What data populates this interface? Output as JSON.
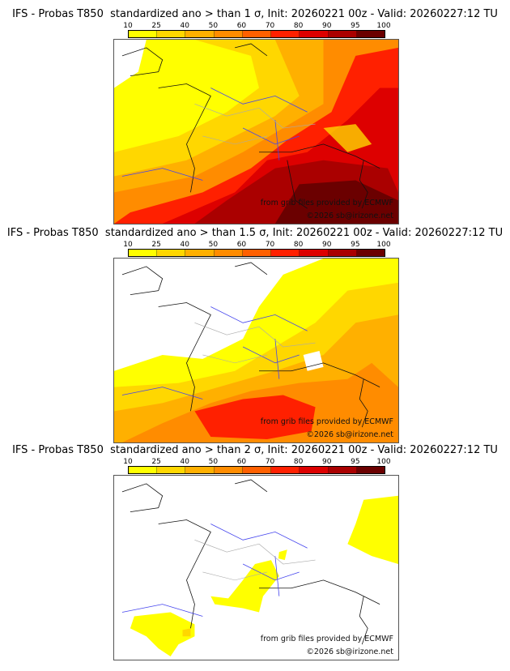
{
  "colorbar": {
    "ticks": [
      "10",
      "25",
      "40",
      "50",
      "60",
      "70",
      "80",
      "90",
      "95",
      "100"
    ],
    "colors": [
      "#ffff00",
      "#ffd700",
      "#ffb000",
      "#ff8c00",
      "#ff6000",
      "#ff2000",
      "#dd0000",
      "#aa0000",
      "#6b0000"
    ]
  },
  "panels": [
    {
      "title": "IFS - Probas T850  standardized ano > than 1 σ, Init: 20260221 00z - Valid: 20260227:12 TU",
      "threshold_sigma": "1",
      "credit_source": "from grib files provided by ECMWF",
      "credit_copyright": "©2026 sb@irizone.net"
    },
    {
      "title": "IFS - Probas T850  standardized ano > than 1.5 σ, Init: 20260221 00z - Valid: 20260227:12 TU",
      "threshold_sigma": "1.5",
      "credit_source": "from grib files provided by ECMWF",
      "credit_copyright": "©2026 sb@irizone.net"
    },
    {
      "title": "IFS - Probas T850  standardized ano > than 2 σ, Init: 20260221 00z - Valid: 20260227:12 TU",
      "threshold_sigma": "2",
      "credit_source": "from grib files provided by ECMWF",
      "credit_copyright": "©2026 sb@irizone.net"
    }
  ]
}
